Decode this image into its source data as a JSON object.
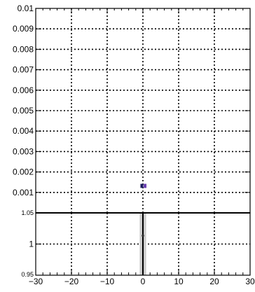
{
  "chart_data": [
    {
      "type": "scatter",
      "panel": "top",
      "title": "",
      "xlabel": "",
      "ylabel": "",
      "xlim": [
        -30,
        30
      ],
      "ylim": [
        0,
        0.01
      ],
      "grid": true,
      "x_ticks": [
        -30,
        -20,
        -10,
        0,
        10,
        20,
        30
      ],
      "y_ticks": [
        0.001,
        0.002,
        0.003,
        0.004,
        0.005,
        0.006,
        0.007,
        0.008,
        0.009,
        0.01
      ],
      "y_tick_labels": [
        "0.001",
        "0.002",
        "0.003",
        "0.004",
        "0.005",
        "0.006",
        "0.007",
        "0.008",
        "0.009",
        "0.01"
      ],
      "series": [
        {
          "color": "#1a1a5e",
          "points": [
            {
              "x": -0.3,
              "y": 0.00132,
              "yerr": 8e-05
            }
          ]
        },
        {
          "color": "#6a3fb0",
          "points": [
            {
              "x": 0.6,
              "y": 0.00132,
              "yerr": 8e-05
            }
          ]
        }
      ]
    },
    {
      "type": "bar",
      "panel": "bottom-ratio",
      "title": "",
      "xlabel": "",
      "ylabel": "",
      "xlim": [
        -30,
        30
      ],
      "ylim": [
        0.95,
        1.05
      ],
      "grid": true,
      "x_ticks": [
        -30,
        -20,
        -10,
        0,
        10,
        20,
        30
      ],
      "x_tick_labels": [
        "−30",
        "−20",
        "−10",
        "0",
        "10",
        "20",
        "30"
      ],
      "y_ticks": [
        1
      ],
      "y_tick_labels": [
        "1"
      ],
      "y_min_label": "0.95",
      "y_max_label": "1.05",
      "band": {
        "x": 0,
        "halfwidth": 0.9,
        "color": "#cccccc"
      },
      "points": [
        {
          "x": 0,
          "y": 1.0
        }
      ]
    }
  ]
}
